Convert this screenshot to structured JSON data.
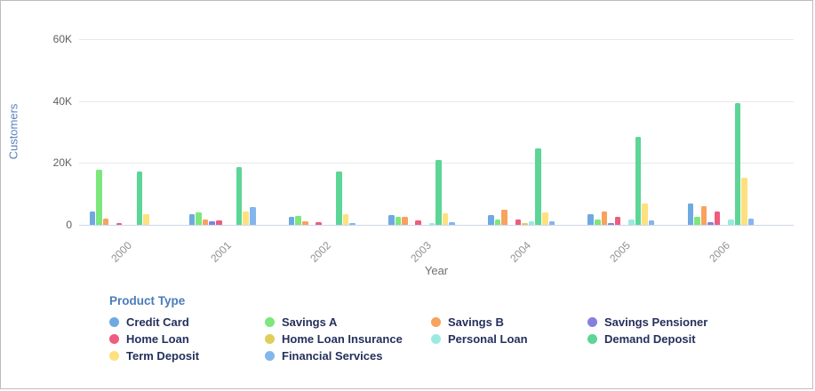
{
  "canvas": {
    "background": "#ffffff",
    "border_color": "#bdbdbd"
  },
  "chart_data": {
    "type": "bar",
    "title": "",
    "xlabel": "Year",
    "ylabel": "Customers",
    "ylim": [
      0,
      60000
    ],
    "yticks": [
      {
        "label": "0",
        "value": 0
      },
      {
        "label": "20K",
        "value": 20000
      },
      {
        "label": "40K",
        "value": 40000
      },
      {
        "label": "60K",
        "value": 60000
      }
    ],
    "grid": true,
    "legend_position": "bottom",
    "legend_title": "Product Type",
    "categories": [
      "2000",
      "2001",
      "2002",
      "2003",
      "2004",
      "2005",
      "2006"
    ],
    "series": [
      {
        "name": "Credit Card",
        "color": "#6fa9e2",
        "values": [
          4300,
          3400,
          2600,
          3100,
          3100,
          3400,
          6900
        ]
      },
      {
        "name": "Savings A",
        "color": "#7ce77c",
        "values": [
          17800,
          4100,
          2900,
          2500,
          1700,
          1700,
          2600
        ]
      },
      {
        "name": "Savings B",
        "color": "#f8a25e",
        "values": [
          1900,
          1700,
          1100,
          2600,
          4900,
          4300,
          6000
        ]
      },
      {
        "name": "Savings Pensioner",
        "color": "#8481de",
        "values": [
          0,
          1100,
          0,
          0,
          0,
          600,
          900
        ]
      },
      {
        "name": "Home Loan",
        "color": "#ee5c80",
        "values": [
          600,
          1400,
          800,
          1400,
          1700,
          2600,
          4300
        ]
      },
      {
        "name": "Home Loan Insurance",
        "color": "#dfce58",
        "values": [
          0,
          0,
          0,
          0,
          500,
          0,
          0
        ]
      },
      {
        "name": "Personal Loan",
        "color": "#9beadf",
        "values": [
          0,
          0,
          0,
          700,
          1100,
          1700,
          1700
        ]
      },
      {
        "name": "Demand Deposit",
        "color": "#5cd596",
        "values": [
          17100,
          18700,
          17100,
          20900,
          24600,
          28300,
          39200
        ]
      },
      {
        "name": "Term Deposit",
        "color": "#ffe07e",
        "values": [
          3400,
          4300,
          3400,
          3600,
          4100,
          6900,
          15100
        ]
      },
      {
        "name": "Financial Services",
        "color": "#83b6ec",
        "values": [
          0,
          5700,
          600,
          900,
          1100,
          1400,
          2000
        ]
      }
    ],
    "axis_colors": {
      "y_title": "#5b83bd",
      "x_title": "#707070",
      "tick_label": "#5f5f5f",
      "x_tick_label": "#8f8f8f",
      "gridline": "#e9e9e9",
      "axis_line": "#ccd6eb"
    },
    "legend_colors": {
      "title": "#4a7cba",
      "item_text": "#25305c"
    }
  }
}
